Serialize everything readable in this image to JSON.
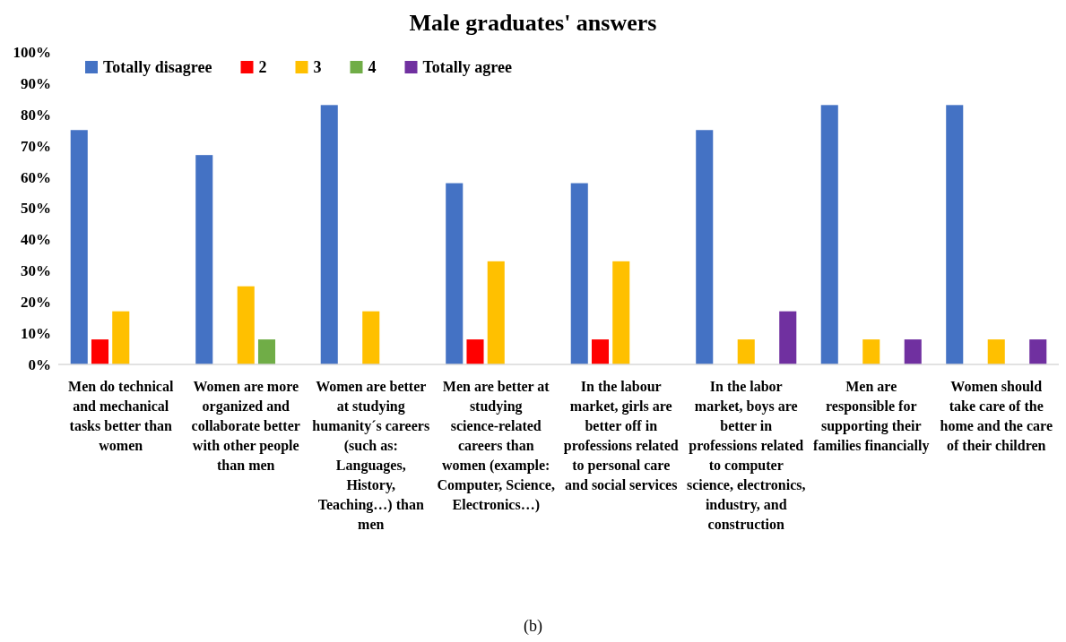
{
  "chart_data": {
    "type": "bar",
    "title": "Male graduates' answers",
    "categories": [
      "Men do technical and mechanical tasks better than women",
      "Women are more organized and collaborate better with other people than men",
      "Women are better at studying humanity´s careers (such as: Languages, History, Teaching…) than men",
      "Men are better at studying science-related careers than women (example: Computer, Science, Electronics…)",
      "In the labour market, girls are better off in professions related to personal care and social services",
      "In the labor market, boys are better in professions related to computer science, electronics, industry, and construction",
      "Men are responsible for supporting their families financially",
      "Women should take care of the home and the care of their children"
    ],
    "series": [
      {
        "name": "Totally disagree",
        "color": "#4472c4",
        "values": [
          75,
          67,
          83,
          58,
          58,
          75,
          83,
          83
        ]
      },
      {
        "name": "2",
        "color": "#ff0000",
        "values": [
          8,
          0,
          0,
          8,
          8,
          0,
          0,
          0
        ]
      },
      {
        "name": "3",
        "color": "#ffc000",
        "values": [
          17,
          25,
          17,
          33,
          33,
          8,
          8,
          8
        ]
      },
      {
        "name": "4",
        "color": "#70ad47",
        "values": [
          0,
          8,
          0,
          0,
          0,
          0,
          0,
          0
        ]
      },
      {
        "name": "Totally agree",
        "color": "#7030a0",
        "values": [
          0,
          0,
          0,
          0,
          0,
          17,
          8,
          8
        ]
      }
    ],
    "ylim": [
      0,
      100
    ],
    "yticks": [
      {
        "value": 0,
        "label": "0%"
      },
      {
        "value": 10,
        "label": "10%"
      },
      {
        "value": 20,
        "label": "20%"
      },
      {
        "value": 30,
        "label": "30%"
      },
      {
        "value": 40,
        "label": "40%"
      },
      {
        "value": 50,
        "label": "50%"
      },
      {
        "value": 60,
        "label": "60%"
      },
      {
        "value": 70,
        "label": "70%"
      },
      {
        "value": 80,
        "label": "80%"
      },
      {
        "value": 90,
        "label": "90%"
      },
      {
        "value": 100,
        "label": "100%"
      }
    ],
    "grid": false,
    "legend": "top left",
    "annotations": [
      "(b)"
    ]
  }
}
